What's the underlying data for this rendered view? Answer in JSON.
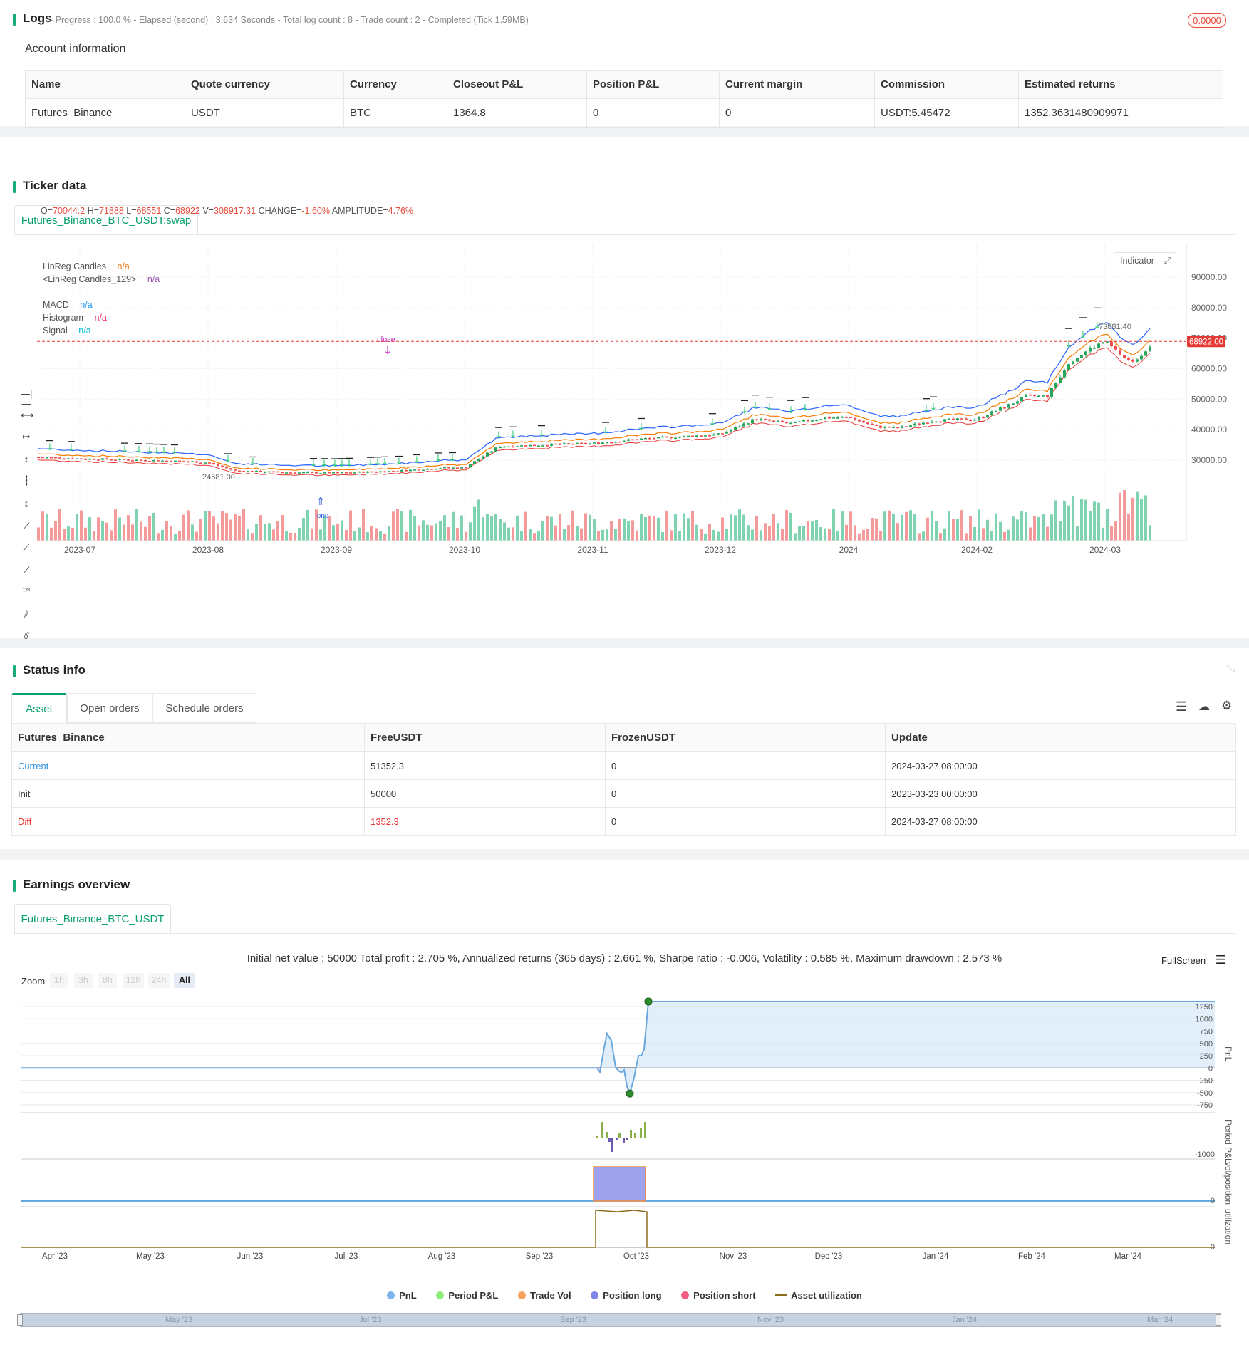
{
  "logs": {
    "title": "Logs",
    "status": "- Progress : 100.0 % - Elapsed (second) : 3.634 Seconds - Total log count : 8 - Trade count : 2 - Completed (Tick 1.59MB)",
    "badge": "0.0000"
  },
  "account": {
    "title": "Account information",
    "columns": [
      "Name",
      "Quote currency",
      "Currency",
      "Closeout P&L",
      "Position P&L",
      "Current margin",
      "Commission",
      "Estimated returns"
    ],
    "row": [
      "Futures_Binance",
      "USDT",
      "BTC",
      "1364.8",
      "0",
      "0",
      "USDT:5.45472",
      "1352.3631480909971"
    ]
  },
  "ticker": {
    "title": "Ticker data",
    "tab": "Futures_Binance_BTC_USDT:swap",
    "ohlc": {
      "o_label": "O=",
      "o": "70044.2",
      "h_label": " H=",
      "h": "71888",
      "l_label": " L=",
      "l": "68551",
      "c_label": " C=",
      "c": "68922",
      "v_label": " V=",
      "v": "308917.31",
      "chg_label": " CHANGE=",
      "chg": "-1.60%",
      "amp_label": " AMPLITUDE=",
      "amp": "4.76%"
    },
    "legend": [
      {
        "name": "LinReg Candles",
        "value": "n/a",
        "color": "#e67e22"
      },
      {
        "name": "<LinReg Candles_129>",
        "value": "n/a",
        "color": "#9b59b6"
      },
      {
        "name": "MACD",
        "value": "n/a",
        "color": "#2196f3"
      },
      {
        "name": "Histogram",
        "value": "n/a",
        "color": "#e91e63"
      },
      {
        "name": "Signal",
        "value": "n/a",
        "color": "#00bcd4"
      }
    ],
    "indicator_button": "Indicator",
    "price_tag": "68922.00",
    "max_label": "73881.40",
    "min_label": "24581.00",
    "mark_close": "close",
    "mark_long": "long",
    "y_ticks": [
      "90000.00",
      "80000.00",
      "70000.00",
      "60000.00",
      "50000.00",
      "40000.00",
      "30000.00"
    ],
    "x_ticks": [
      "2023-07",
      "2023-08",
      "2023-09",
      "2023-10",
      "2023-11",
      "2023-12",
      "2024",
      "2024-02",
      "2024-03"
    ]
  },
  "chart_data": [
    {
      "type": "candlestick",
      "title": "",
      "x": [
        "2023-07",
        "2023-08",
        "2023-09",
        "2023-10",
        "2023-11",
        "2023-12",
        "2024",
        "2024-02",
        "2024-03"
      ],
      "close_approx": [
        30500,
        29200,
        26000,
        27500,
        35500,
        38500,
        44000,
        43000,
        62000
      ],
      "ylim": [
        20000,
        95000
      ],
      "last": {
        "open": 70044.2,
        "high": 71888,
        "low": 68551,
        "close": 68922
      },
      "series": [
        {
          "name": "LinReg Candles",
          "values": "n/a"
        },
        {
          "name": "MACD",
          "values": "n/a"
        },
        {
          "name": "Histogram",
          "values": "n/a"
        },
        {
          "name": "Signal",
          "values": "n/a"
        }
      ]
    },
    {
      "type": "area",
      "title": "",
      "ylabel": "PnL",
      "y_ticks": [
        1250,
        1000,
        750,
        500,
        250,
        0,
        -250,
        -500,
        -750
      ],
      "x": [
        "Apr '23",
        "May '23",
        "Jun '23",
        "Jul '23",
        "Aug '23",
        "Sep '23",
        "Oct '23",
        "Nov '23",
        "Dec '23",
        "Jan '24",
        "Feb '24",
        "Mar '24"
      ],
      "values": [
        0,
        0,
        0,
        0,
        0,
        0,
        1352,
        1352,
        1352,
        1352,
        1352,
        1352
      ],
      "min": -520,
      "max": 1352
    }
  ],
  "status": {
    "title": "Status info",
    "tabs": [
      "Asset",
      "Open orders",
      "Schedule orders"
    ],
    "columns": [
      "Futures_Binance",
      "FreeUSDT",
      "FrozenUSDT",
      "Update"
    ],
    "rows": [
      [
        "Current",
        "51352.3",
        "0",
        "2024-03-27 08:00:00"
      ],
      [
        "Init",
        "50000",
        "0",
        "2023-03-23 00:00:00"
      ],
      [
        "Diff",
        "1352.3",
        "0",
        "2024-03-27 08:00:00"
      ]
    ]
  },
  "earnings": {
    "title": "Earnings overview",
    "tab": "Futures_Binance_BTC_USDT",
    "summary": "Initial net value : 50000 Total profit : 2.705 %, Annualized returns (365 days) : 2.661 %, Sharpe ratio : -0.006, Volatility : 0.585 %, Maximum drawdown : 2.573 %",
    "fullscreen": "FullScreen",
    "zoom_label": "Zoom",
    "zoom_options": [
      "1h",
      "3h",
      "8h",
      "12h",
      "24h",
      "All"
    ],
    "pnl_axis": "PnL",
    "period_axis": "Period P&L",
    "period_tick": "-1000",
    "vol_axis": "vol/position",
    "vol_tick": "0",
    "util_axis": "utilization",
    "util_tick": "0",
    "pnl_ticks": [
      "1250",
      "1000",
      "750",
      "500",
      "250",
      "0",
      "-250",
      "-500",
      "-750"
    ],
    "x_ticks": [
      "Apr '23",
      "May '23",
      "Jun '23",
      "Jul '23",
      "Aug '23",
      "Sep '23",
      "Oct '23",
      "Nov '23",
      "Dec '23",
      "Jan '24",
      "Feb '24",
      "Mar '24"
    ],
    "nav_ticks": [
      "May '23",
      "Jul '23",
      "Sep '23",
      "Nov '23",
      "Jan '24",
      "Mar '24"
    ],
    "legend": [
      {
        "name": "PnL",
        "color": "#7cb5ec"
      },
      {
        "name": "Period P&L",
        "color": "#90ed7d"
      },
      {
        "name": "Trade Vol",
        "color": "#f7a35c"
      },
      {
        "name": "Position long",
        "color": "#8085e9"
      },
      {
        "name": "Position short",
        "color": "#f15c80"
      },
      {
        "name": "Asset utilization",
        "color": "#8d6e1f"
      }
    ]
  }
}
